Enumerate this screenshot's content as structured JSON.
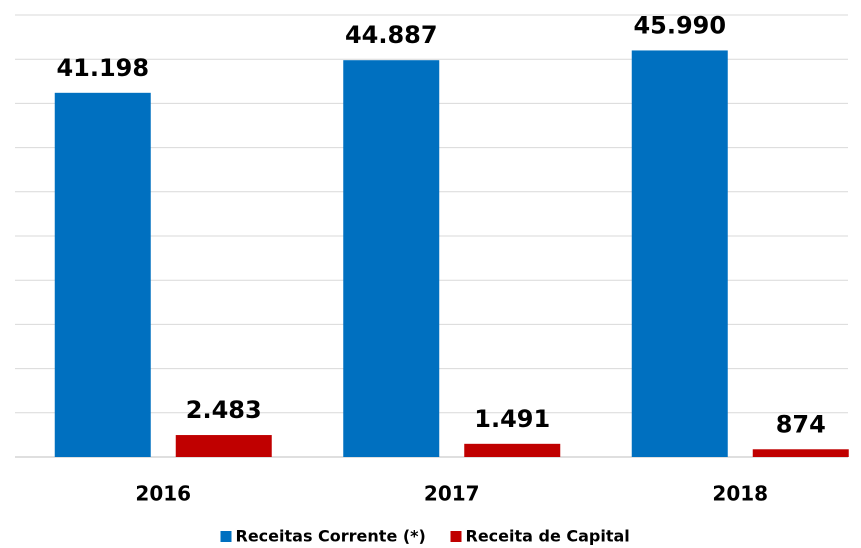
{
  "chart_data": {
    "type": "bar",
    "categories": [
      "2016",
      "2017",
      "2018"
    ],
    "series": [
      {
        "name": "Receitas Corrente (*)",
        "color": "#0070c0",
        "values": [
          41198,
          44887,
          45990
        ],
        "value_labels": [
          "41.198",
          "44.887",
          "45.990"
        ]
      },
      {
        "name": "Receita de Capital",
        "color": "#c00000",
        "values": [
          2483,
          1491,
          874
        ],
        "value_labels": [
          "2.483",
          "1.491",
          "874"
        ]
      }
    ],
    "ylim": [
      0,
      50000
    ],
    "yticks": [
      0,
      5000,
      10000,
      15000,
      20000,
      25000,
      30000,
      35000,
      40000,
      45000,
      50000
    ],
    "grid": true,
    "legend": "bottom"
  }
}
